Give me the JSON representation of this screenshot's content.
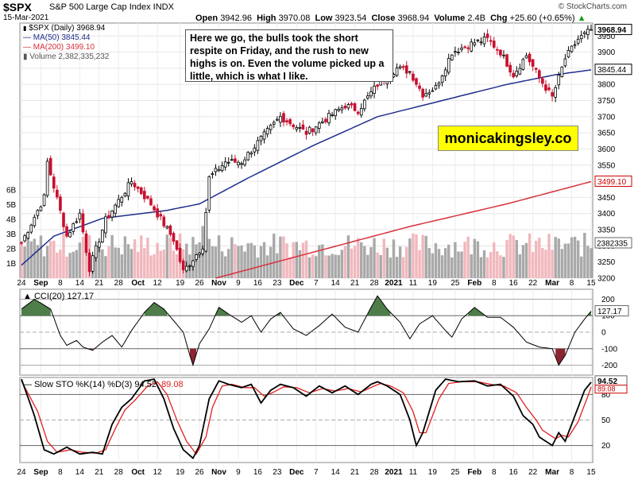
{
  "header": {
    "ticker": "$SPX",
    "name": "S&P 500 Large Cap Index INDX",
    "date": "15-Mar-2021",
    "open_label": "Open",
    "open": "3942.96",
    "high_label": "High",
    "high": "3970.08",
    "low_label": "Low",
    "low": "3923.54",
    "close_label": "Close",
    "close": "3968.94",
    "volume_label": "Volume",
    "volume": "2.4B",
    "chg_label": "Chg",
    "chg": "+25.60 (+0.65%)",
    "chg_arrow": "▲",
    "brand": "© StockCharts.com"
  },
  "legend": {
    "price": "$SPX (Daily) 3968.94",
    "ma50": "MA(50) 3845.44",
    "ma200": "MA(200) 3499.10",
    "volume": "Volume 2,382,335,232",
    "cci": "CCI(20) 127.17",
    "sto_prefix": "Slow STO %K(14) %D(3)",
    "sto_k": "94.52",
    "sto_d": "89.08"
  },
  "annotation": {
    "note": "Here we go, the bulls took the short respite on Friday, and the rush to new highs is on. Even the volume picked up a little, which is what I like.",
    "watermark": "monicakingsley.co"
  },
  "chart_data": {
    "type": "candlestick",
    "title": "$SPX S&P 500 Large Cap Index (Daily)",
    "price_ylim": [
      3200,
      3990
    ],
    "price_ticks": [
      3200,
      3250,
      3300,
      3350,
      3400,
      3450,
      3500,
      3550,
      3600,
      3650,
      3700,
      3750,
      3800,
      3850,
      3900,
      3950
    ],
    "price_labels": [
      {
        "value": 3968.94,
        "text": "3968.94",
        "color": "#000000"
      },
      {
        "value": 3845.44,
        "text": "3845.44",
        "color": "#000000"
      },
      {
        "value": 3499.1,
        "text": "3499.10",
        "color": "#cc0000"
      }
    ],
    "volume_ticks": [
      "1B",
      "2B",
      "3B",
      "4B",
      "5B",
      "6B"
    ],
    "volume_label": "2382335",
    "x_ticks": [
      "24",
      "Sep",
      "8",
      "14",
      "21",
      "28",
      "Oct",
      "12",
      "19",
      "26",
      "Nov",
      "9",
      "16",
      "23",
      "Dec",
      "7",
      "14",
      "21",
      "28",
      "2021",
      "11",
      "19",
      "25",
      "Feb",
      "8",
      "16",
      "22",
      "Mar",
      "8",
      "15"
    ],
    "price_anchors": [
      [
        0,
        3310
      ],
      [
        7,
        3450
      ],
      [
        8,
        3560
      ],
      [
        14,
        3330
      ],
      [
        18,
        3400
      ],
      [
        21,
        3230
      ],
      [
        26,
        3380
      ],
      [
        34,
        3500
      ],
      [
        40,
        3430
      ],
      [
        47,
        3320
      ],
      [
        50,
        3220
      ],
      [
        56,
        3300
      ],
      [
        58,
        3510
      ],
      [
        63,
        3560
      ],
      [
        68,
        3560
      ],
      [
        73,
        3620
      ],
      [
        80,
        3700
      ],
      [
        88,
        3650
      ],
      [
        95,
        3700
      ],
      [
        100,
        3735
      ],
      [
        104,
        3720
      ],
      [
        110,
        3800
      ],
      [
        116,
        3850
      ],
      [
        120,
        3840
      ],
      [
        124,
        3770
      ],
      [
        128,
        3790
      ],
      [
        133,
        3900
      ],
      [
        140,
        3930
      ],
      [
        144,
        3940
      ],
      [
        148,
        3900
      ],
      [
        152,
        3830
      ],
      [
        156,
        3890
      ],
      [
        160,
        3820
      ],
      [
        164,
        3760
      ],
      [
        168,
        3880
      ],
      [
        172,
        3940
      ],
      [
        176,
        3969
      ]
    ],
    "ma50_anchors": [
      [
        0,
        3240
      ],
      [
        10,
        3330
      ],
      [
        25,
        3385
      ],
      [
        45,
        3410
      ],
      [
        55,
        3430
      ],
      [
        70,
        3510
      ],
      [
        90,
        3610
      ],
      [
        110,
        3700
      ],
      [
        130,
        3750
      ],
      [
        150,
        3800
      ],
      [
        165,
        3830
      ],
      [
        176,
        3845
      ]
    ],
    "ma200_anchors": [
      [
        60,
        3200
      ],
      [
        90,
        3280
      ],
      [
        120,
        3360
      ],
      [
        150,
        3430
      ],
      [
        176,
        3499
      ]
    ],
    "cci_ticks": [
      200,
      100,
      0,
      -100,
      -200
    ],
    "cci_ylim": [
      -260,
      260
    ],
    "cci_last": {
      "value": 127.17,
      "text": "127.17"
    },
    "cci_anchors": [
      [
        0,
        140
      ],
      [
        4,
        200
      ],
      [
        9,
        140
      ],
      [
        12,
        -20
      ],
      [
        14,
        -80
      ],
      [
        17,
        -50
      ],
      [
        19,
        -90
      ],
      [
        22,
        -110
      ],
      [
        25,
        -60
      ],
      [
        28,
        -20
      ],
      [
        31,
        -90
      ],
      [
        34,
        10
      ],
      [
        38,
        120
      ],
      [
        41,
        180
      ],
      [
        44,
        140
      ],
      [
        47,
        70
      ],
      [
        50,
        0
      ],
      [
        52,
        -140
      ],
      [
        53,
        -200
      ],
      [
        55,
        -70
      ],
      [
        58,
        20
      ],
      [
        61,
        150
      ],
      [
        64,
        110
      ],
      [
        68,
        60
      ],
      [
        71,
        100
      ],
      [
        74,
        0
      ],
      [
        77,
        80
      ],
      [
        80,
        120
      ],
      [
        84,
        20
      ],
      [
        88,
        -20
      ],
      [
        92,
        40
      ],
      [
        96,
        110
      ],
      [
        100,
        30
      ],
      [
        104,
        0
      ],
      [
        108,
        150
      ],
      [
        110,
        220
      ],
      [
        113,
        140
      ],
      [
        117,
        60
      ],
      [
        120,
        -40
      ],
      [
        123,
        50
      ],
      [
        127,
        100
      ],
      [
        131,
        10
      ],
      [
        133,
        -30
      ],
      [
        136,
        80
      ],
      [
        140,
        150
      ],
      [
        144,
        90
      ],
      [
        148,
        90
      ],
      [
        152,
        30
      ],
      [
        156,
        -60
      ],
      [
        160,
        -90
      ],
      [
        164,
        -100
      ],
      [
        166,
        -200
      ],
      [
        168,
        -140
      ],
      [
        171,
        0
      ],
      [
        174,
        80
      ],
      [
        176,
        127
      ]
    ],
    "sto_ticks": [
      80,
      50,
      20
    ],
    "sto_ylim": [
      0,
      100
    ],
    "sto_k_anchors": [
      [
        0,
        98
      ],
      [
        4,
        55
      ],
      [
        7,
        15
      ],
      [
        10,
        10
      ],
      [
        14,
        18
      ],
      [
        18,
        10
      ],
      [
        22,
        12
      ],
      [
        25,
        10
      ],
      [
        28,
        45
      ],
      [
        31,
        65
      ],
      [
        34,
        75
      ],
      [
        38,
        96
      ],
      [
        41,
        98
      ],
      [
        44,
        75
      ],
      [
        47,
        40
      ],
      [
        50,
        15
      ],
      [
        53,
        5
      ],
      [
        55,
        20
      ],
      [
        58,
        75
      ],
      [
        61,
        96
      ],
      [
        64,
        92
      ],
      [
        68,
        88
      ],
      [
        71,
        92
      ],
      [
        74,
        70
      ],
      [
        77,
        85
      ],
      [
        80,
        92
      ],
      [
        84,
        88
      ],
      [
        88,
        78
      ],
      [
        92,
        90
      ],
      [
        96,
        82
      ],
      [
        100,
        90
      ],
      [
        104,
        80
      ],
      [
        108,
        92
      ],
      [
        110,
        95
      ],
      [
        113,
        90
      ],
      [
        117,
        80
      ],
      [
        120,
        50
      ],
      [
        122,
        20
      ],
      [
        124,
        35
      ],
      [
        128,
        85
      ],
      [
        131,
        98
      ],
      [
        135,
        95
      ],
      [
        140,
        96
      ],
      [
        144,
        90
      ],
      [
        148,
        92
      ],
      [
        152,
        78
      ],
      [
        155,
        55
      ],
      [
        158,
        45
      ],
      [
        160,
        30
      ],
      [
        164,
        20
      ],
      [
        166,
        35
      ],
      [
        168,
        25
      ],
      [
        171,
        55
      ],
      [
        174,
        85
      ],
      [
        176,
        94.5
      ]
    ],
    "sto_d_anchors": [
      [
        0,
        96
      ],
      [
        5,
        60
      ],
      [
        8,
        25
      ],
      [
        11,
        12
      ],
      [
        15,
        15
      ],
      [
        19,
        12
      ],
      [
        23,
        11
      ],
      [
        26,
        15
      ],
      [
        29,
        40
      ],
      [
        32,
        62
      ],
      [
        35,
        73
      ],
      [
        39,
        90
      ],
      [
        42,
        95
      ],
      [
        45,
        80
      ],
      [
        48,
        50
      ],
      [
        51,
        25
      ],
      [
        54,
        10
      ],
      [
        57,
        30
      ],
      [
        59,
        65
      ],
      [
        62,
        90
      ],
      [
        65,
        92
      ],
      [
        69,
        88
      ],
      [
        72,
        88
      ],
      [
        75,
        78
      ],
      [
        78,
        83
      ],
      [
        81,
        89
      ],
      [
        85,
        88
      ],
      [
        89,
        82
      ],
      [
        93,
        87
      ],
      [
        97,
        84
      ],
      [
        101,
        87
      ],
      [
        105,
        83
      ],
      [
        109,
        90
      ],
      [
        111,
        93
      ],
      [
        114,
        90
      ],
      [
        118,
        82
      ],
      [
        121,
        60
      ],
      [
        123,
        35
      ],
      [
        125,
        35
      ],
      [
        129,
        75
      ],
      [
        132,
        93
      ],
      [
        136,
        95
      ],
      [
        141,
        95
      ],
      [
        145,
        92
      ],
      [
        149,
        90
      ],
      [
        153,
        82
      ],
      [
        156,
        65
      ],
      [
        159,
        50
      ],
      [
        161,
        38
      ],
      [
        165,
        28
      ],
      [
        167,
        32
      ],
      [
        169,
        30
      ],
      [
        172,
        48
      ],
      [
        175,
        78
      ],
      [
        176,
        89
      ]
    ],
    "bars": 177,
    "colors": {
      "up": "#000000",
      "down": "#c8102e",
      "ma50": "#1f2d8c",
      "ma200": "#d9303a",
      "vol_up": "#a9a9a9",
      "vol_down": "#f0b8bd",
      "cci_pos": "#4e7d4a",
      "cci_neg": "#8a2530",
      "sto_k": "#000000",
      "sto_d": "#e0201e"
    }
  }
}
